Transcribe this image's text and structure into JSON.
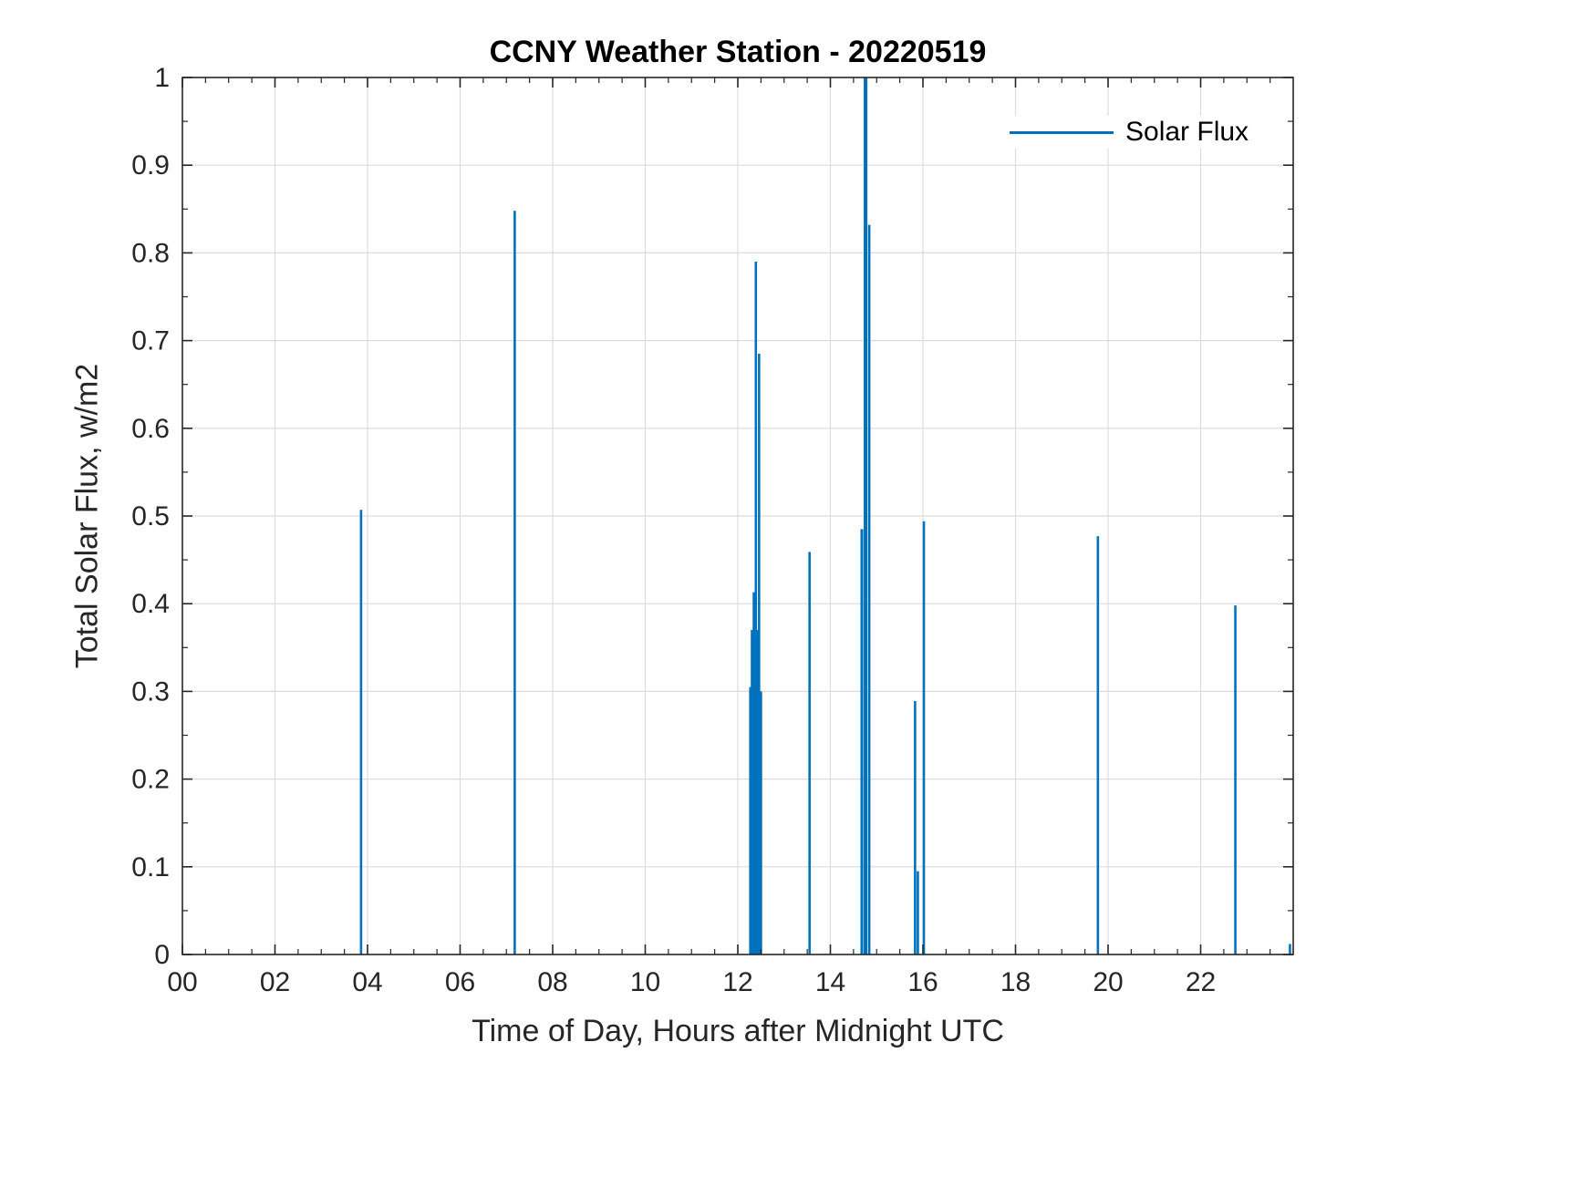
{
  "colors": {
    "line": "#0072BD",
    "axis": "#262626",
    "grid": "#dcdcdc",
    "tick_label": "#262626",
    "background": "#ffffff"
  },
  "legend": {
    "label": "Solar Flux"
  },
  "chart_data": {
    "type": "line",
    "subtype": "impulse-spikes",
    "title": "CCNY Weather Station - 20220519",
    "xlabel": "Time of Day, Hours after Midnight UTC",
    "ylabel": "Total Solar Flux, w/m2",
    "xlim": [
      0,
      24
    ],
    "ylim": [
      0,
      1
    ],
    "grid": true,
    "legend": [
      "Solar Flux"
    ],
    "legend_position": "northeast",
    "xticks": {
      "values": [
        0,
        2,
        4,
        6,
        8,
        10,
        12,
        14,
        16,
        18,
        20,
        22
      ],
      "labels": [
        "00",
        "02",
        "04",
        "06",
        "08",
        "10",
        "12",
        "14",
        "16",
        "18",
        "20",
        "22"
      ]
    },
    "yticks": {
      "values": [
        0,
        0.1,
        0.2,
        0.3,
        0.4,
        0.5,
        0.6,
        0.7,
        0.8,
        0.9,
        1
      ],
      "labels": [
        "0",
        "0.1",
        "0.2",
        "0.3",
        "0.4",
        "0.5",
        "0.6",
        "0.7",
        "0.8",
        "0.9",
        "1"
      ]
    },
    "series_name": "Solar Flux",
    "spikes": [
      {
        "x": 3.86,
        "y": 0.507
      },
      {
        "x": 7.18,
        "y": 0.848
      },
      {
        "x": 12.27,
        "y": 0.305,
        "w": 0.05
      },
      {
        "x": 12.31,
        "y": 0.37,
        "w": 0.06
      },
      {
        "x": 12.35,
        "y": 0.413,
        "w": 0.06
      },
      {
        "x": 12.39,
        "y": 0.79
      },
      {
        "x": 12.42,
        "y": 0.37,
        "w": 0.06
      },
      {
        "x": 12.46,
        "y": 0.685
      },
      {
        "x": 12.5,
        "y": 0.3,
        "w": 0.04
      },
      {
        "x": 13.55,
        "y": 0.459
      },
      {
        "x": 14.68,
        "y": 0.485,
        "w": 0.06
      },
      {
        "x": 14.76,
        "y": 1.0,
        "w": 0.08
      },
      {
        "x": 14.84,
        "y": 0.832
      },
      {
        "x": 15.83,
        "y": 0.289
      },
      {
        "x": 15.89,
        "y": 0.095
      },
      {
        "x": 16.02,
        "y": 0.494
      },
      {
        "x": 19.78,
        "y": 0.477
      },
      {
        "x": 22.75,
        "y": 0.398
      },
      {
        "x": 23.93,
        "y": 0.012
      }
    ]
  }
}
